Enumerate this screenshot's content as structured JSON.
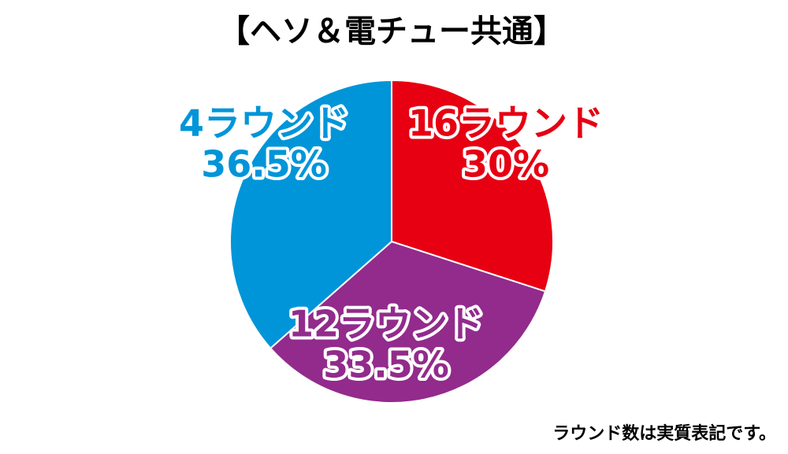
{
  "chart_data": {
    "type": "pie",
    "title": "【ヘソ＆電チュー共通】",
    "categories": [
      "16ラウンド",
      "12ラウンド",
      "4ラウンド"
    ],
    "values": [
      30,
      33.5,
      36.5
    ],
    "value_labels": [
      "30%",
      "33.5%",
      "36.5%"
    ],
    "colors": [
      "#e60012",
      "#922b8c",
      "#0095d9"
    ],
    "note": "ラウンド数は実質表記です。"
  }
}
